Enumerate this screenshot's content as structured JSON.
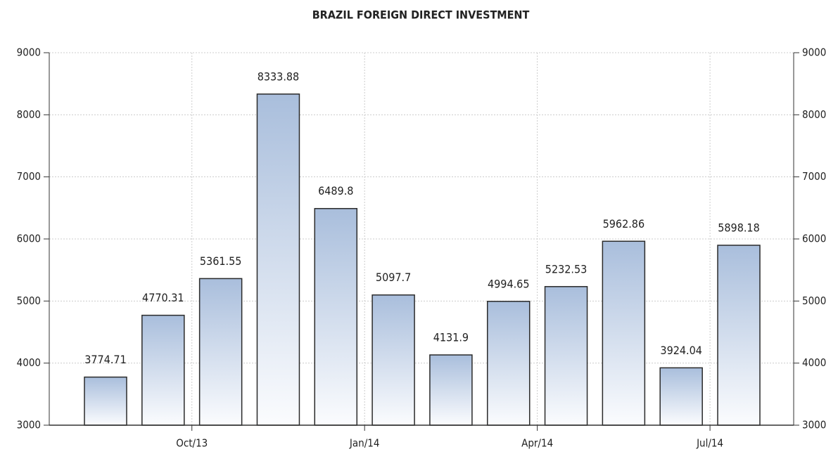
{
  "chart_data": {
    "type": "bar",
    "title": "BRAZIL FOREIGN DIRECT INVESTMENT",
    "categories": [
      null,
      null,
      "Oct/13",
      null,
      null,
      "Jan/14",
      null,
      null,
      "Apr/14",
      null,
      null,
      "Jul/14"
    ],
    "values": [
      3774.71,
      4770.31,
      5361.55,
      8333.88,
      6489.8,
      5097.7,
      4131.9,
      4994.65,
      5232.53,
      5962.86,
      3924.04,
      5898.18
    ],
    "color": "#a9bedc",
    "ylim": [
      3000,
      9000
    ],
    "yticks": [
      3000,
      4000,
      5000,
      6000,
      7000,
      8000,
      9000
    ],
    "grid": true
  }
}
